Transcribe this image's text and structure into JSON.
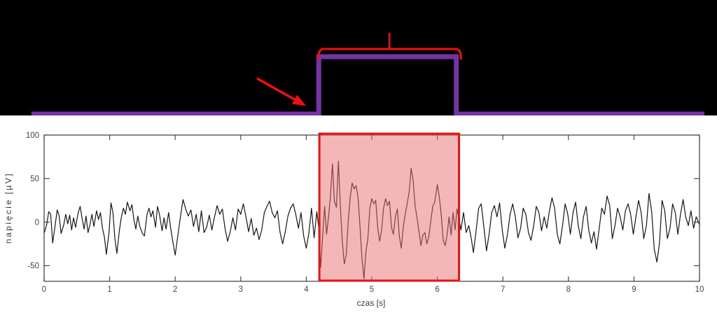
{
  "figure": {
    "schematic": {
      "background_color": "#000000",
      "pulse_color": "#7633a6",
      "annotation_color": "#f40d0d",
      "pulse_rise_s": 4.19,
      "pulse_fall_s": 6.29,
      "brace_start_s": 4.185,
      "brace_end_s": 6.36,
      "brace_tip_s": 5.27
    }
  },
  "chart_data": {
    "type": "line",
    "title": "",
    "xlabel": "czas [s]",
    "ylabel": "napięcie [µV]",
    "xlim": [
      0,
      10
    ],
    "ylim": [
      -68,
      100
    ],
    "xticks": [
      0,
      1,
      2,
      3,
      4,
      5,
      6,
      7,
      8,
      9,
      10
    ],
    "yticks": [
      -50,
      0,
      50,
      100
    ],
    "grid": false,
    "legend": "none",
    "line_color": "#161616",
    "axis_color": "#3a3a3a",
    "highlight_region": {
      "x_start": 4.2,
      "x_end": 6.33,
      "fill": "#e87070",
      "fill_opacity": 0.5,
      "border_color": "#e81414",
      "border_width": 3
    },
    "series": [
      {
        "points": [
          [
            0,
            -13
          ],
          [
            0.04,
            -3
          ],
          [
            0.07,
            12
          ],
          [
            0.1,
            9
          ],
          [
            0.13,
            -24
          ],
          [
            0.16,
            -8
          ],
          [
            0.2,
            14
          ],
          [
            0.23,
            7
          ],
          [
            0.26,
            -13
          ],
          [
            0.3,
            -3
          ],
          [
            0.33,
            9
          ],
          [
            0.36,
            -2
          ],
          [
            0.39,
            8
          ],
          [
            0.42,
            -9
          ],
          [
            0.45,
            5
          ],
          [
            0.48,
            -6
          ],
          [
            0.52,
            11
          ],
          [
            0.55,
            18
          ],
          [
            0.58,
            4
          ],
          [
            0.61,
            -8
          ],
          [
            0.64,
            7
          ],
          [
            0.67,
            -12
          ],
          [
            0.7,
            -3
          ],
          [
            0.73,
            9
          ],
          [
            0.76,
            -5
          ],
          [
            0.8,
            13
          ],
          [
            0.83,
            3
          ],
          [
            0.86,
            11
          ],
          [
            0.89,
            -7
          ],
          [
            0.92,
            -17
          ],
          [
            0.95,
            -37
          ],
          [
            0.99,
            -12
          ],
          [
            1.02,
            22
          ],
          [
            1.05,
            11
          ],
          [
            1.08,
            -19
          ],
          [
            1.11,
            -36
          ],
          [
            1.15,
            -9
          ],
          [
            1.18,
            6
          ],
          [
            1.21,
            16
          ],
          [
            1.24,
            9
          ],
          [
            1.27,
            23
          ],
          [
            1.31,
            13
          ],
          [
            1.34,
            20
          ],
          [
            1.37,
            3
          ],
          [
            1.4,
            -8
          ],
          [
            1.43,
            7
          ],
          [
            1.46,
            -5
          ],
          [
            1.5,
            -13
          ],
          [
            1.53,
            -16
          ],
          [
            1.57,
            9
          ],
          [
            1.6,
            16
          ],
          [
            1.63,
            6
          ],
          [
            1.66,
            13
          ],
          [
            1.7,
            -6
          ],
          [
            1.73,
            18
          ],
          [
            1.76,
            9
          ],
          [
            1.8,
            -10
          ],
          [
            1.83,
            5
          ],
          [
            1.86,
            -8
          ],
          [
            1.9,
            11
          ],
          [
            1.93,
            -6
          ],
          [
            1.96,
            -21
          ],
          [
            2,
            -38
          ],
          [
            2.04,
            -16
          ],
          [
            2.08,
            6
          ],
          [
            2.12,
            26
          ],
          [
            2.16,
            15
          ],
          [
            2.2,
            7
          ],
          [
            2.24,
            14
          ],
          [
            2.28,
            -5
          ],
          [
            2.32,
            9
          ],
          [
            2.36,
            -11
          ],
          [
            2.4,
            13
          ],
          [
            2.44,
            -12
          ],
          [
            2.48,
            -6
          ],
          [
            2.52,
            8
          ],
          [
            2.56,
            -9
          ],
          [
            2.6,
            6
          ],
          [
            2.64,
            19
          ],
          [
            2.68,
            9
          ],
          [
            2.72,
            15
          ],
          [
            2.76,
            -7
          ],
          [
            2.8,
            -22
          ],
          [
            2.84,
            -11
          ],
          [
            2.88,
            5
          ],
          [
            2.92,
            -9
          ],
          [
            2.96,
            15
          ],
          [
            3,
            9
          ],
          [
            3.04,
            21
          ],
          [
            3.08,
            6
          ],
          [
            3.12,
            -11
          ],
          [
            3.16,
            4
          ],
          [
            3.2,
            -15
          ],
          [
            3.24,
            -7
          ],
          [
            3.28,
            -20
          ],
          [
            3.32,
            -9
          ],
          [
            3.36,
            11
          ],
          [
            3.4,
            18
          ],
          [
            3.44,
            24
          ],
          [
            3.48,
            11
          ],
          [
            3.52,
            5
          ],
          [
            3.56,
            13
          ],
          [
            3.6,
            -12
          ],
          [
            3.64,
            -25
          ],
          [
            3.68,
            -11
          ],
          [
            3.72,
            7
          ],
          [
            3.76,
            16
          ],
          [
            3.8,
            21
          ],
          [
            3.84,
            9
          ],
          [
            3.88,
            -7
          ],
          [
            3.92,
            11
          ],
          [
            3.96,
            -16
          ],
          [
            4,
            -30
          ],
          [
            4.04,
            -13
          ],
          [
            4.08,
            16
          ],
          [
            4.12,
            -18
          ],
          [
            4.16,
            12
          ],
          [
            4.19,
            -6
          ],
          [
            4.22,
            -52
          ],
          [
            4.25,
            -16
          ],
          [
            4.28,
            18
          ],
          [
            4.31,
            -14
          ],
          [
            4.34,
            6
          ],
          [
            4.37,
            30
          ],
          [
            4.4,
            67
          ],
          [
            4.43,
            24
          ],
          [
            4.46,
            17
          ],
          [
            4.49,
            70
          ],
          [
            4.52,
            18
          ],
          [
            4.55,
            -22
          ],
          [
            4.58,
            -48
          ],
          [
            4.61,
            -38
          ],
          [
            4.64,
            1
          ],
          [
            4.67,
            28
          ],
          [
            4.7,
            45
          ],
          [
            4.73,
            38
          ],
          [
            4.76,
            42
          ],
          [
            4.79,
            29
          ],
          [
            4.82,
            -6
          ],
          [
            4.85,
            -42
          ],
          [
            4.88,
            -65
          ],
          [
            4.91,
            -34
          ],
          [
            4.94,
            -19
          ],
          [
            4.97,
            16
          ],
          [
            5,
            27
          ],
          [
            5.03,
            21
          ],
          [
            5.06,
            25
          ],
          [
            5.09,
            -6
          ],
          [
            5.12,
            -22
          ],
          [
            5.15,
            -9
          ],
          [
            5.18,
            16
          ],
          [
            5.21,
            27
          ],
          [
            5.24,
            19
          ],
          [
            5.27,
            24
          ],
          [
            5.3,
            -6
          ],
          [
            5.33,
            -14
          ],
          [
            5.36,
            6
          ],
          [
            5.39,
            15
          ],
          [
            5.42,
            -16
          ],
          [
            5.45,
            -30
          ],
          [
            5.48,
            -6
          ],
          [
            5.51,
            9
          ],
          [
            5.54,
            21
          ],
          [
            5.57,
            35
          ],
          [
            5.6,
            62
          ],
          [
            5.63,
            48
          ],
          [
            5.66,
            19
          ],
          [
            5.69,
            5
          ],
          [
            5.72,
            -11
          ],
          [
            5.75,
            -27
          ],
          [
            5.78,
            -15
          ],
          [
            5.81,
            -12
          ],
          [
            5.84,
            -25
          ],
          [
            5.87,
            -17
          ],
          [
            5.9,
            1
          ],
          [
            5.93,
            18
          ],
          [
            5.96,
            23
          ],
          [
            6,
            43
          ],
          [
            6.03,
            29
          ],
          [
            6.06,
            8
          ],
          [
            6.09,
            -21
          ],
          [
            6.12,
            -27
          ],
          [
            6.15,
            -14
          ],
          [
            6.18,
            6
          ],
          [
            6.21,
            -15
          ],
          [
            6.24,
            11
          ],
          [
            6.27,
            -9
          ],
          [
            6.3,
            15
          ],
          [
            6.33,
            4
          ],
          [
            6.36,
            -9
          ],
          [
            6.4,
            11
          ],
          [
            6.44,
            -12
          ],
          [
            6.48,
            -4
          ],
          [
            6.52,
            -20
          ],
          [
            6.55,
            -35
          ],
          [
            6.59,
            -11
          ],
          [
            6.63,
            16
          ],
          [
            6.67,
            21
          ],
          [
            6.71,
            -6
          ],
          [
            6.75,
            -33
          ],
          [
            6.79,
            -14
          ],
          [
            6.83,
            11
          ],
          [
            6.87,
            19
          ],
          [
            6.91,
            6
          ],
          [
            6.95,
            22
          ],
          [
            6.99,
            -9
          ],
          [
            7.03,
            -30
          ],
          [
            7.07,
            -14
          ],
          [
            7.11,
            9
          ],
          [
            7.15,
            21
          ],
          [
            7.19,
            6
          ],
          [
            7.23,
            -18
          ],
          [
            7.27,
            -7
          ],
          [
            7.31,
            16
          ],
          [
            7.35,
            9
          ],
          [
            7.39,
            -12
          ],
          [
            7.43,
            -21
          ],
          [
            7.47,
            -4
          ],
          [
            7.51,
            18
          ],
          [
            7.55,
            11
          ],
          [
            7.59,
            -10
          ],
          [
            7.63,
            6
          ],
          [
            7.67,
            -7
          ],
          [
            7.71,
            13
          ],
          [
            7.75,
            28
          ],
          [
            7.79,
            16
          ],
          [
            7.83,
            -14
          ],
          [
            7.87,
            -25
          ],
          [
            7.91,
            -4
          ],
          [
            7.95,
            21
          ],
          [
            7.99,
            9
          ],
          [
            8.03,
            -14
          ],
          [
            8.07,
            11
          ],
          [
            8.11,
            23
          ],
          [
            8.15,
            -4
          ],
          [
            8.19,
            -19
          ],
          [
            8.23,
            6
          ],
          [
            8.27,
            18
          ],
          [
            8.31,
            -9
          ],
          [
            8.35,
            -24
          ],
          [
            8.39,
            -11
          ],
          [
            8.43,
            -31
          ],
          [
            8.47,
            -7
          ],
          [
            8.51,
            16
          ],
          [
            8.55,
            9
          ],
          [
            8.59,
            30
          ],
          [
            8.63,
            19
          ],
          [
            8.67,
            -19
          ],
          [
            8.71,
            -4
          ],
          [
            8.75,
            16
          ],
          [
            8.79,
            6
          ],
          [
            8.83,
            -9
          ],
          [
            8.87,
            13
          ],
          [
            8.91,
            21
          ],
          [
            8.95,
            9
          ],
          [
            8.99,
            -14
          ],
          [
            9.03,
            6
          ],
          [
            9.07,
            25
          ],
          [
            9.11,
            11
          ],
          [
            9.15,
            -19
          ],
          [
            9.19,
            -4
          ],
          [
            9.23,
            33
          ],
          [
            9.27,
            12
          ],
          [
            9.31,
            -31
          ],
          [
            9.35,
            -46
          ],
          [
            9.39,
            -24
          ],
          [
            9.43,
            25
          ],
          [
            9.47,
            13
          ],
          [
            9.51,
            -19
          ],
          [
            9.55,
            -7
          ],
          [
            9.59,
            21
          ],
          [
            9.63,
            11
          ],
          [
            9.67,
            -14
          ],
          [
            9.71,
            9
          ],
          [
            9.75,
            26
          ],
          [
            9.79,
            6
          ],
          [
            9.83,
            -4
          ],
          [
            9.87,
            13
          ],
          [
            9.91,
            -7
          ],
          [
            9.95,
            6
          ],
          [
            10,
            -3
          ]
        ]
      }
    ]
  }
}
